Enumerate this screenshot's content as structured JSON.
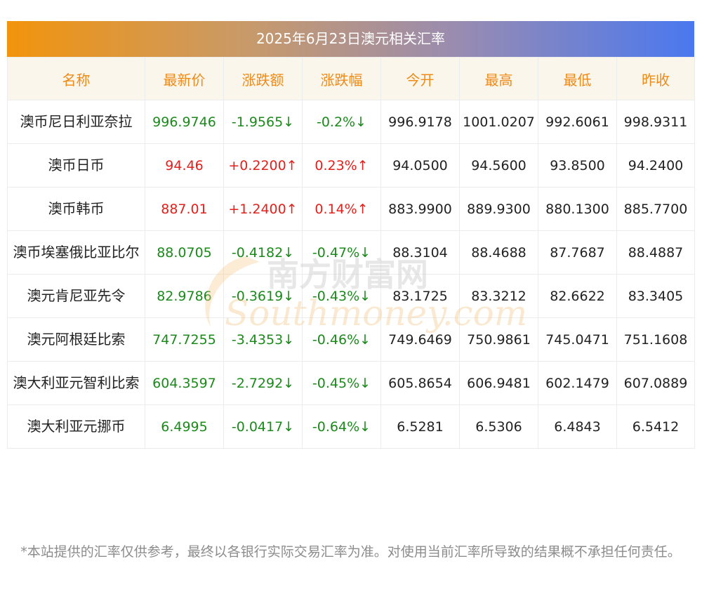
{
  "title": "2025年6月23日澳元相关汇率",
  "headers": [
    "名称",
    "最新价",
    "涨跌额",
    "涨跌幅",
    "今开",
    "最高",
    "最低",
    "昨收"
  ],
  "rows": [
    {
      "name": "澳币尼日利亚奈拉",
      "latest": "996.9746",
      "change": "-1.9565↓",
      "pct": "-0.2%↓",
      "open": "996.9178",
      "high": "1001.0207",
      "low": "992.6061",
      "prev": "998.9311",
      "dir": "down"
    },
    {
      "name": "澳币日币",
      "latest": "94.46",
      "change": "+0.2200↑",
      "pct": "0.23%↑",
      "open": "94.0500",
      "high": "94.5600",
      "low": "93.8500",
      "prev": "94.2400",
      "dir": "up"
    },
    {
      "name": "澳币韩币",
      "latest": "887.01",
      "change": "+1.2400↑",
      "pct": "0.14%↑",
      "open": "883.9900",
      "high": "889.9300",
      "low": "880.1300",
      "prev": "885.7700",
      "dir": "up"
    },
    {
      "name": "澳币埃塞俄比亚比尔",
      "latest": "88.0705",
      "change": "-0.4182↓",
      "pct": "-0.47%↓",
      "open": "88.3104",
      "high": "88.4688",
      "low": "87.7687",
      "prev": "88.4887",
      "dir": "down"
    },
    {
      "name": "澳元肯尼亚先令",
      "latest": "82.9786",
      "change": "-0.3619↓",
      "pct": "-0.43%↓",
      "open": "83.1725",
      "high": "83.3212",
      "low": "82.6622",
      "prev": "83.3405",
      "dir": "down"
    },
    {
      "name": "澳元阿根廷比索",
      "latest": "747.7255",
      "change": "-3.4353↓",
      "pct": "-0.46%↓",
      "open": "749.6469",
      "high": "750.9861",
      "low": "745.0471",
      "prev": "751.1608",
      "dir": "down"
    },
    {
      "name": "澳大利亚元智利比索",
      "latest": "604.3597",
      "change": "-2.7292↓",
      "pct": "-0.45%↓",
      "open": "605.8654",
      "high": "606.9481",
      "low": "602.1479",
      "prev": "607.0889",
      "dir": "down"
    },
    {
      "name": "澳大利亚元挪币",
      "latest": "6.4995",
      "change": "-0.0417↓",
      "pct": "-0.64%↓",
      "open": "6.5281",
      "high": "6.5306",
      "low": "6.4843",
      "prev": "6.5412",
      "dir": "down"
    }
  ],
  "note": "*本站提供的汇率仅供参考，最终以各银行实际交易汇率为准。对使用当前汇率所导致的结果概不承担任何责任。",
  "watermark": {
    "cn": "南方财富网",
    "en": "Southmoney.com"
  },
  "colors": {
    "up": "#e3201b",
    "down": "#1b8a1b",
    "header_text": "#ef8a16",
    "header_bg": "#fbf6ec"
  }
}
